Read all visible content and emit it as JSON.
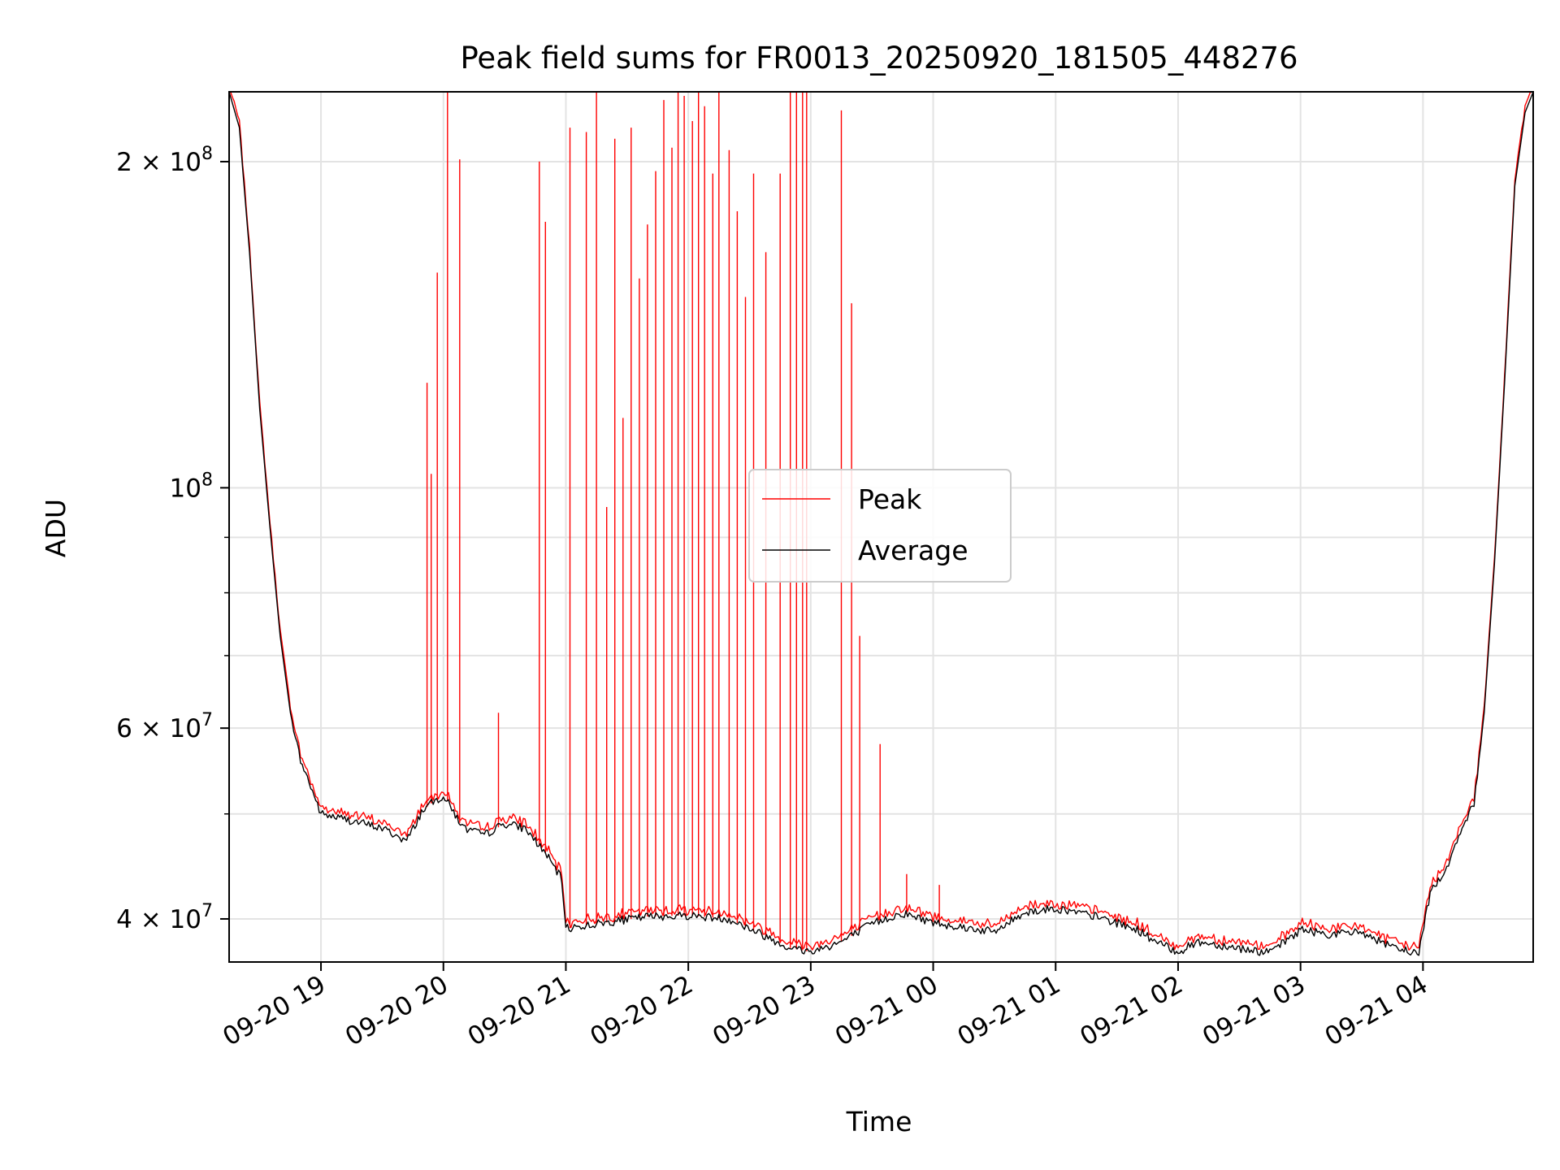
{
  "chart_data": {
    "type": "line",
    "title": "Peak field sums for FR0013_20250920_181505_448276",
    "xlabel": "Time",
    "ylabel": "ADU",
    "y_scale": "log",
    "ylim": [
      36500000,
      232000000
    ],
    "xlim": [
      "2025-09-20 18:15",
      "2025-09-21 04:54"
    ],
    "grid": true,
    "legend_position": "center",
    "x_ticks": [
      {
        "at": "2025-09-20 19:00",
        "label": "09-20 19"
      },
      {
        "at": "2025-09-20 20:00",
        "label": "09-20 20"
      },
      {
        "at": "2025-09-20 21:00",
        "label": "09-20 21"
      },
      {
        "at": "2025-09-20 22:00",
        "label": "09-20 22"
      },
      {
        "at": "2025-09-20 23:00",
        "label": "09-20 23"
      },
      {
        "at": "2025-09-21 00:00",
        "label": "09-21 00"
      },
      {
        "at": "2025-09-21 01:00",
        "label": "09-21 01"
      },
      {
        "at": "2025-09-21 02:00",
        "label": "09-21 02"
      },
      {
        "at": "2025-09-21 03:00",
        "label": "09-21 03"
      },
      {
        "at": "2025-09-21 04:00",
        "label": "09-21 04"
      }
    ],
    "y_ticks": [
      {
        "value": 40000000,
        "base": "4 × 10",
        "exp": "7"
      },
      {
        "value": 60000000,
        "base": "6 × 10",
        "exp": "7"
      },
      {
        "value": 100000000,
        "base": "10",
        "exp": "8"
      },
      {
        "value": 200000000,
        "base": "2 × 10",
        "exp": "8"
      }
    ],
    "y_minor": [
      50000000,
      70000000,
      80000000,
      90000000
    ],
    "series": [
      {
        "name": "Average",
        "color": "#000000",
        "points": [
          [
            "2025-09-20 18:15",
            232000000
          ],
          [
            "2025-09-20 18:20",
            215000000
          ],
          [
            "2025-09-20 18:25",
            165000000
          ],
          [
            "2025-09-20 18:30",
            118000000
          ],
          [
            "2025-09-20 18:35",
            92000000
          ],
          [
            "2025-09-20 18:40",
            73000000
          ],
          [
            "2025-09-20 18:45",
            62000000
          ],
          [
            "2025-09-20 18:50",
            56000000
          ],
          [
            "2025-09-20 18:55",
            53000000
          ],
          [
            "2025-09-20 19:00",
            50000000
          ],
          [
            "2025-09-20 19:15",
            49300000
          ],
          [
            "2025-09-20 19:30",
            48500000
          ],
          [
            "2025-09-20 19:42",
            47200000
          ],
          [
            "2025-09-20 19:50",
            50500000
          ],
          [
            "2025-09-20 20:00",
            52000000
          ],
          [
            "2025-09-20 20:10",
            48500000
          ],
          [
            "2025-09-20 20:20",
            47800000
          ],
          [
            "2025-09-20 20:30",
            49000000
          ],
          [
            "2025-09-20 20:40",
            48500000
          ],
          [
            "2025-09-20 20:50",
            46000000
          ],
          [
            "2025-09-20 20:58",
            43500000
          ],
          [
            "2025-09-20 21:00",
            39200000
          ],
          [
            "2025-09-20 21:20",
            39700000
          ],
          [
            "2025-09-20 21:40",
            40200000
          ],
          [
            "2025-09-20 22:00",
            40300000
          ],
          [
            "2025-09-20 22:20",
            40000000
          ],
          [
            "2025-09-20 22:40",
            38400000
          ],
          [
            "2025-09-20 22:50",
            37600000
          ],
          [
            "2025-09-20 23:00",
            37300000
          ],
          [
            "2025-09-20 23:15",
            38100000
          ],
          [
            "2025-09-20 23:30",
            39600000
          ],
          [
            "2025-09-20 23:45",
            40500000
          ],
          [
            "2025-09-21 00:00",
            39700000
          ],
          [
            "2025-09-21 00:15",
            39300000
          ],
          [
            "2025-09-21 00:30",
            38900000
          ],
          [
            "2025-09-21 00:45",
            40600000
          ],
          [
            "2025-09-21 01:00",
            40900000
          ],
          [
            "2025-09-21 01:20",
            40200000
          ],
          [
            "2025-09-21 01:40",
            39100000
          ],
          [
            "2025-09-21 01:50",
            38000000
          ],
          [
            "2025-09-21 02:00",
            37300000
          ],
          [
            "2025-09-21 02:10",
            38100000
          ],
          [
            "2025-09-21 02:30",
            37600000
          ],
          [
            "2025-09-21 02:45",
            37200000
          ],
          [
            "2025-09-21 03:00",
            39100000
          ],
          [
            "2025-09-21 03:15",
            38700000
          ],
          [
            "2025-09-21 03:30",
            38900000
          ],
          [
            "2025-09-21 03:45",
            37600000
          ],
          [
            "2025-09-21 03:58",
            37200000
          ],
          [
            "2025-09-21 04:02",
            41000000
          ],
          [
            "2025-09-21 04:05",
            43000000
          ],
          [
            "2025-09-21 04:10",
            43800000
          ],
          [
            "2025-09-21 04:15",
            46500000
          ],
          [
            "2025-09-21 04:20",
            49000000
          ],
          [
            "2025-09-21 04:25",
            51000000
          ],
          [
            "2025-09-21 04:30",
            62000000
          ],
          [
            "2025-09-21 04:35",
            85000000
          ],
          [
            "2025-09-21 04:40",
            125000000
          ],
          [
            "2025-09-21 04:45",
            190000000
          ],
          [
            "2025-09-21 04:50",
            222000000
          ],
          [
            "2025-09-21 04:54",
            232000000
          ]
        ]
      },
      {
        "name": "Peak",
        "color": "#ff0000",
        "note_series_type": "average_plus_spikes",
        "spikes": [
          [
            "2025-09-20 19:52",
            125000000
          ],
          [
            "2025-09-20 19:54",
            103000000
          ],
          [
            "2025-09-20 19:57",
            158000000
          ],
          [
            "2025-09-20 20:02",
            232000000
          ],
          [
            "2025-09-20 20:08",
            201000000
          ],
          [
            "2025-09-20 20:27",
            62000000
          ],
          [
            "2025-09-20 20:47",
            200000000
          ],
          [
            "2025-09-20 20:50",
            176000000
          ],
          [
            "2025-09-20 21:02",
            215000000
          ],
          [
            "2025-09-20 21:10",
            213000000
          ],
          [
            "2025-09-20 21:15",
            232000000
          ],
          [
            "2025-09-20 21:20",
            96000000
          ],
          [
            "2025-09-20 21:24",
            210000000
          ],
          [
            "2025-09-20 21:28",
            116000000
          ],
          [
            "2025-09-20 21:32",
            215000000
          ],
          [
            "2025-09-20 21:36",
            156000000
          ],
          [
            "2025-09-20 21:40",
            175000000
          ],
          [
            "2025-09-20 21:44",
            196000000
          ],
          [
            "2025-09-20 21:48",
            228000000
          ],
          [
            "2025-09-20 21:52",
            206000000
          ],
          [
            "2025-09-20 21:55",
            232000000
          ],
          [
            "2025-09-20 21:58",
            230000000
          ],
          [
            "2025-09-20 22:02",
            218000000
          ],
          [
            "2025-09-20 22:05",
            232000000
          ],
          [
            "2025-09-20 22:08",
            225000000
          ],
          [
            "2025-09-20 22:12",
            195000000
          ],
          [
            "2025-09-20 22:15",
            232000000
          ],
          [
            "2025-09-20 22:20",
            205000000
          ],
          [
            "2025-09-20 22:24",
            180000000
          ],
          [
            "2025-09-20 22:28",
            150000000
          ],
          [
            "2025-09-20 22:32",
            195000000
          ],
          [
            "2025-09-20 22:38",
            165000000
          ],
          [
            "2025-09-20 22:45",
            195000000
          ],
          [
            "2025-09-20 22:50",
            232000000
          ],
          [
            "2025-09-20 22:53",
            232000000
          ],
          [
            "2025-09-20 22:56",
            232000000
          ],
          [
            "2025-09-20 22:58",
            232000000
          ],
          [
            "2025-09-20 23:15",
            223000000
          ],
          [
            "2025-09-20 23:20",
            148000000
          ],
          [
            "2025-09-20 23:24",
            73000000
          ],
          [
            "2025-09-20 23:34",
            58000000
          ],
          [
            "2025-09-20 23:47",
            44000000
          ],
          [
            "2025-09-21 00:03",
            43000000
          ]
        ]
      }
    ]
  }
}
